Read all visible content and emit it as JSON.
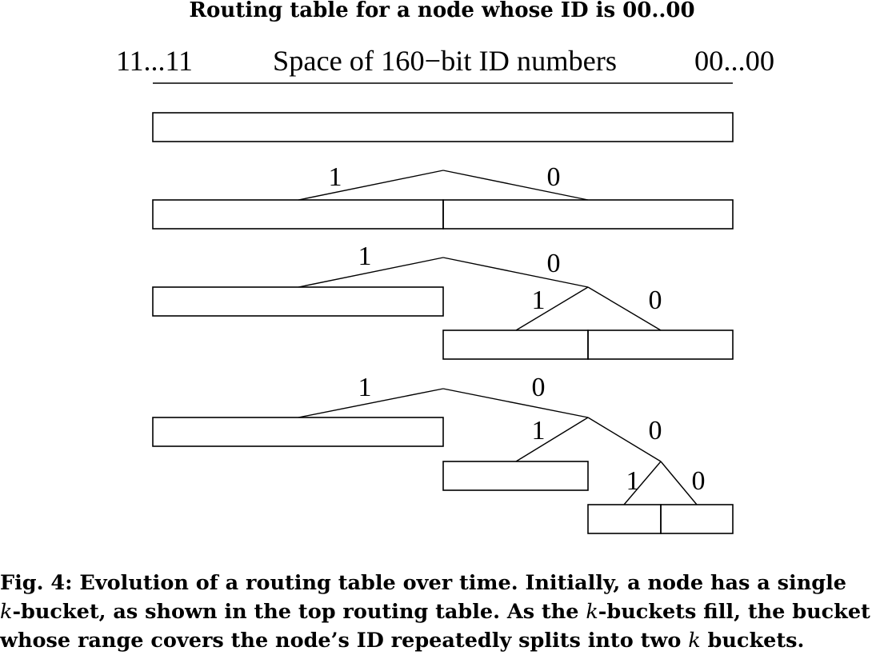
{
  "title": "Routing table for a node whose ID is 00..00",
  "axis": {
    "left_label": "11...11",
    "center_label": "Space of 160−bit ID numbers",
    "right_label": "00...00"
  },
  "branch_labels": {
    "one": "1",
    "zero": "0"
  },
  "caption": {
    "line1_a": "Fig. 4: Evolution of a routing table over time. Initially, a node has a single",
    "line2_k1": "k",
    "line2_a": "-bucket, as shown in the top routing table. As the ",
    "line2_k2": "k",
    "line2_b": "-buckets fill, the bucket",
    "line3_a": "whose range covers the node’s ID repeatedly splits into two ",
    "line3_k": "k",
    "line3_b": " buckets."
  }
}
